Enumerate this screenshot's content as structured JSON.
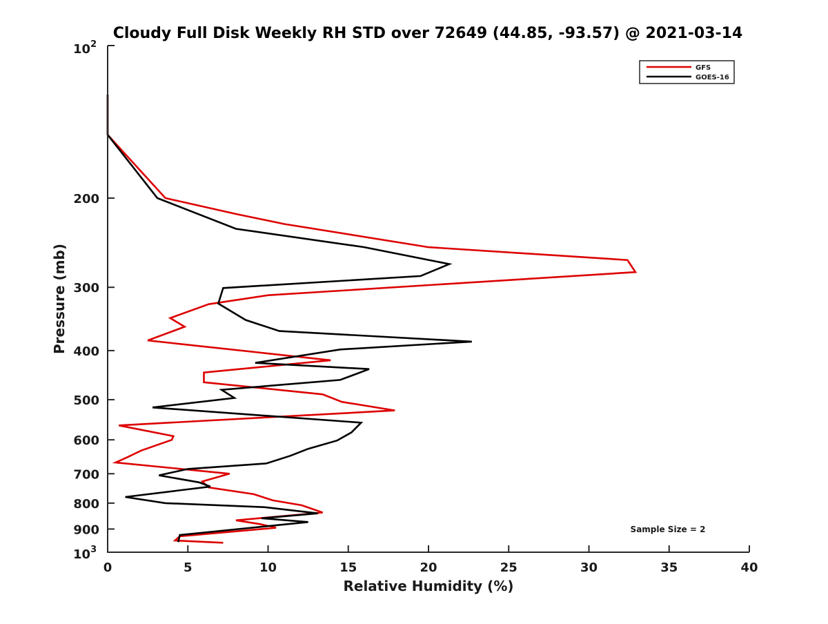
{
  "chart_data": {
    "type": "line",
    "title": "Cloudy Full Disk Weekly RH STD over 72649 (44.85, -93.57) @ 2021-03-14",
    "xlabel": "Relative Humidity (%)",
    "ylabel": "Pressure (mb)",
    "xlim": [
      0,
      40
    ],
    "ylim": [
      100,
      1000
    ],
    "y_scale": "log",
    "y_reversed": true,
    "x_ticks": [
      0,
      5,
      10,
      15,
      20,
      25,
      30,
      35,
      40
    ],
    "x_tick_labels": [
      "0",
      "5",
      "10",
      "15",
      "20",
      "25",
      "30",
      "35",
      "40"
    ],
    "y_ticks": [
      200,
      300,
      400,
      500,
      600,
      700,
      800,
      900
    ],
    "y_tick_labels": [
      "200",
      "300",
      "400",
      "500",
      "600",
      "700",
      "800",
      "900"
    ],
    "y_top_label": {
      "base": "10",
      "exp": "2"
    },
    "y_bottom_label": {
      "base": "10",
      "exp": "3"
    },
    "grid": false,
    "legend_position": "top-right",
    "annotation": "Sample Size = 2",
    "series": [
      {
        "name": "GFS",
        "color": "#dd0000",
        "points": [
          [
            0,
            125
          ],
          [
            0,
            150
          ],
          [
            3.6,
            200
          ],
          [
            8,
            215
          ],
          [
            11,
            225
          ],
          [
            20,
            250
          ],
          [
            32.4,
            265
          ],
          [
            32.9,
            280
          ],
          [
            10,
            311
          ],
          [
            6.3,
            324
          ],
          [
            3.9,
            345
          ],
          [
            4.8,
            359
          ],
          [
            2.5,
            382
          ],
          [
            13.9,
            418
          ],
          [
            6,
            442
          ],
          [
            6,
            462
          ],
          [
            13.4,
            488
          ],
          [
            14.6,
            505
          ],
          [
            17.9,
            525
          ],
          [
            0.7,
            562
          ],
          [
            4.1,
            590
          ],
          [
            4,
            600
          ],
          [
            2.1,
            630
          ],
          [
            1.2,
            650
          ],
          [
            0.5,
            665
          ],
          [
            7.6,
            700
          ],
          [
            5.9,
            725
          ],
          [
            6.3,
            745
          ],
          [
            9.1,
            768
          ],
          [
            10.3,
            790
          ],
          [
            12.1,
            808
          ],
          [
            13.4,
            835
          ],
          [
            8,
            865
          ],
          [
            9.5,
            880
          ],
          [
            10.5,
            895
          ],
          [
            4.5,
            930
          ],
          [
            4.2,
            948
          ],
          [
            7.2,
            958
          ]
        ]
      },
      {
        "name": "GOES-16",
        "color": "#000000",
        "points": [
          [
            0,
            125
          ],
          [
            0,
            150
          ],
          [
            3.1,
            200
          ],
          [
            8,
            230
          ],
          [
            16,
            250
          ],
          [
            21.3,
            270
          ],
          [
            19.5,
            285
          ],
          [
            7.2,
            301
          ],
          [
            6.9,
            323
          ],
          [
            8.6,
            348
          ],
          [
            10.7,
            366
          ],
          [
            22.7,
            384
          ],
          [
            14.5,
            398
          ],
          [
            9.2,
            423
          ],
          [
            16.3,
            435
          ],
          [
            14.5,
            457
          ],
          [
            7.1,
            478
          ],
          [
            7.9,
            496
          ],
          [
            2.8,
            518
          ],
          [
            15.8,
            555
          ],
          [
            15.2,
            580
          ],
          [
            14.3,
            602
          ],
          [
            12.5,
            625
          ],
          [
            11.4,
            645
          ],
          [
            9.9,
            668
          ],
          [
            5,
            685
          ],
          [
            3.2,
            705
          ],
          [
            5.7,
            728
          ],
          [
            6.4,
            742
          ],
          [
            1.1,
            778
          ],
          [
            3.6,
            800
          ],
          [
            9.8,
            815
          ],
          [
            13.1,
            838
          ],
          [
            9.6,
            857
          ],
          [
            12.5,
            872
          ],
          [
            4.5,
            925
          ],
          [
            4.4,
            955
          ]
        ]
      }
    ]
  }
}
